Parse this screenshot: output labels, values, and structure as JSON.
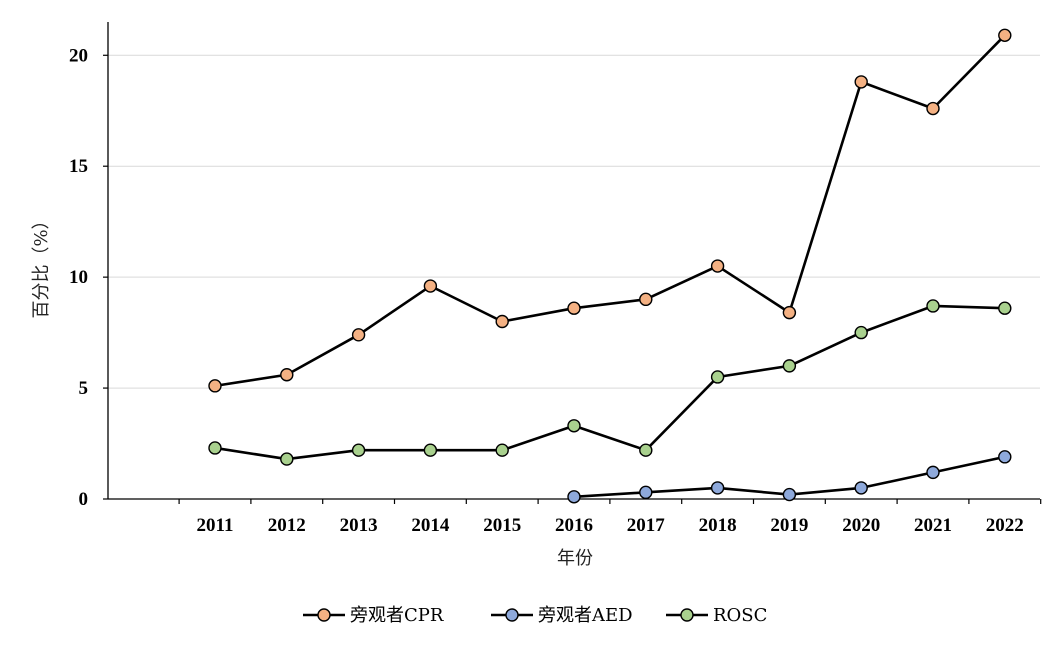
{
  "chart_data": {
    "type": "line",
    "title": "",
    "xlabel": "年份",
    "ylabel": "百分比（%）",
    "x": [
      "2011",
      "2012",
      "2013",
      "2014",
      "2015",
      "2016",
      "2017",
      "2018",
      "2019",
      "2020",
      "2021",
      "2022"
    ],
    "ylim": [
      0,
      21.5
    ],
    "yticks": [
      "0",
      "5",
      "10",
      "15",
      "20"
    ],
    "grid": "horizontal",
    "legend_position": "bottom",
    "series": [
      {
        "name": "旁观者CPR",
        "color": "#F4B183",
        "values": [
          5.1,
          5.6,
          7.4,
          9.6,
          8.0,
          8.6,
          9.0,
          10.5,
          8.4,
          18.8,
          17.6,
          20.9
        ]
      },
      {
        "name": "旁观者AED",
        "color": "#8EA9DB",
        "values": [
          null,
          null,
          null,
          null,
          null,
          0.1,
          0.3,
          0.5,
          0.2,
          0.5,
          1.2,
          1.9
        ]
      },
      {
        "name": "ROSC",
        "color": "#A9D18E",
        "values": [
          2.3,
          1.8,
          2.2,
          2.2,
          2.2,
          3.3,
          2.2,
          5.5,
          6.0,
          7.5,
          8.7,
          8.6
        ]
      }
    ]
  }
}
